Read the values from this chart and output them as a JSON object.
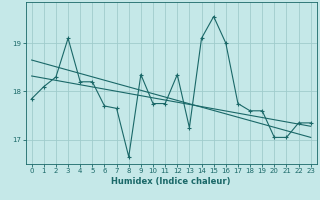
{
  "xlabel": "Humidex (Indice chaleur)",
  "background_color": "#c5e8e8",
  "grid_color": "#a0cccc",
  "line_color": "#1a6868",
  "xlim": [
    -0.5,
    23.5
  ],
  "ylim": [
    16.5,
    19.85
  ],
  "yticks": [
    17,
    18,
    19
  ],
  "xticks": [
    0,
    1,
    2,
    3,
    4,
    5,
    6,
    7,
    8,
    9,
    10,
    11,
    12,
    13,
    14,
    15,
    16,
    17,
    18,
    19,
    20,
    21,
    22,
    23
  ],
  "main_x": [
    0,
    1,
    2,
    3,
    4,
    5,
    6,
    7,
    8,
    9,
    10,
    11,
    12,
    13,
    14,
    15,
    16,
    17,
    18,
    19,
    20,
    21,
    22,
    23
  ],
  "main_y": [
    17.85,
    18.1,
    18.3,
    19.1,
    18.2,
    18.2,
    17.7,
    17.65,
    16.65,
    18.35,
    17.75,
    17.75,
    18.35,
    17.25,
    19.1,
    19.55,
    19.0,
    17.75,
    17.6,
    17.6,
    17.05,
    17.05,
    17.35,
    17.35
  ],
  "trend1_x": [
    0,
    23
  ],
  "trend1_y": [
    18.65,
    17.05
  ],
  "trend2_x": [
    0,
    23
  ],
  "trend2_y": [
    18.32,
    17.28
  ]
}
